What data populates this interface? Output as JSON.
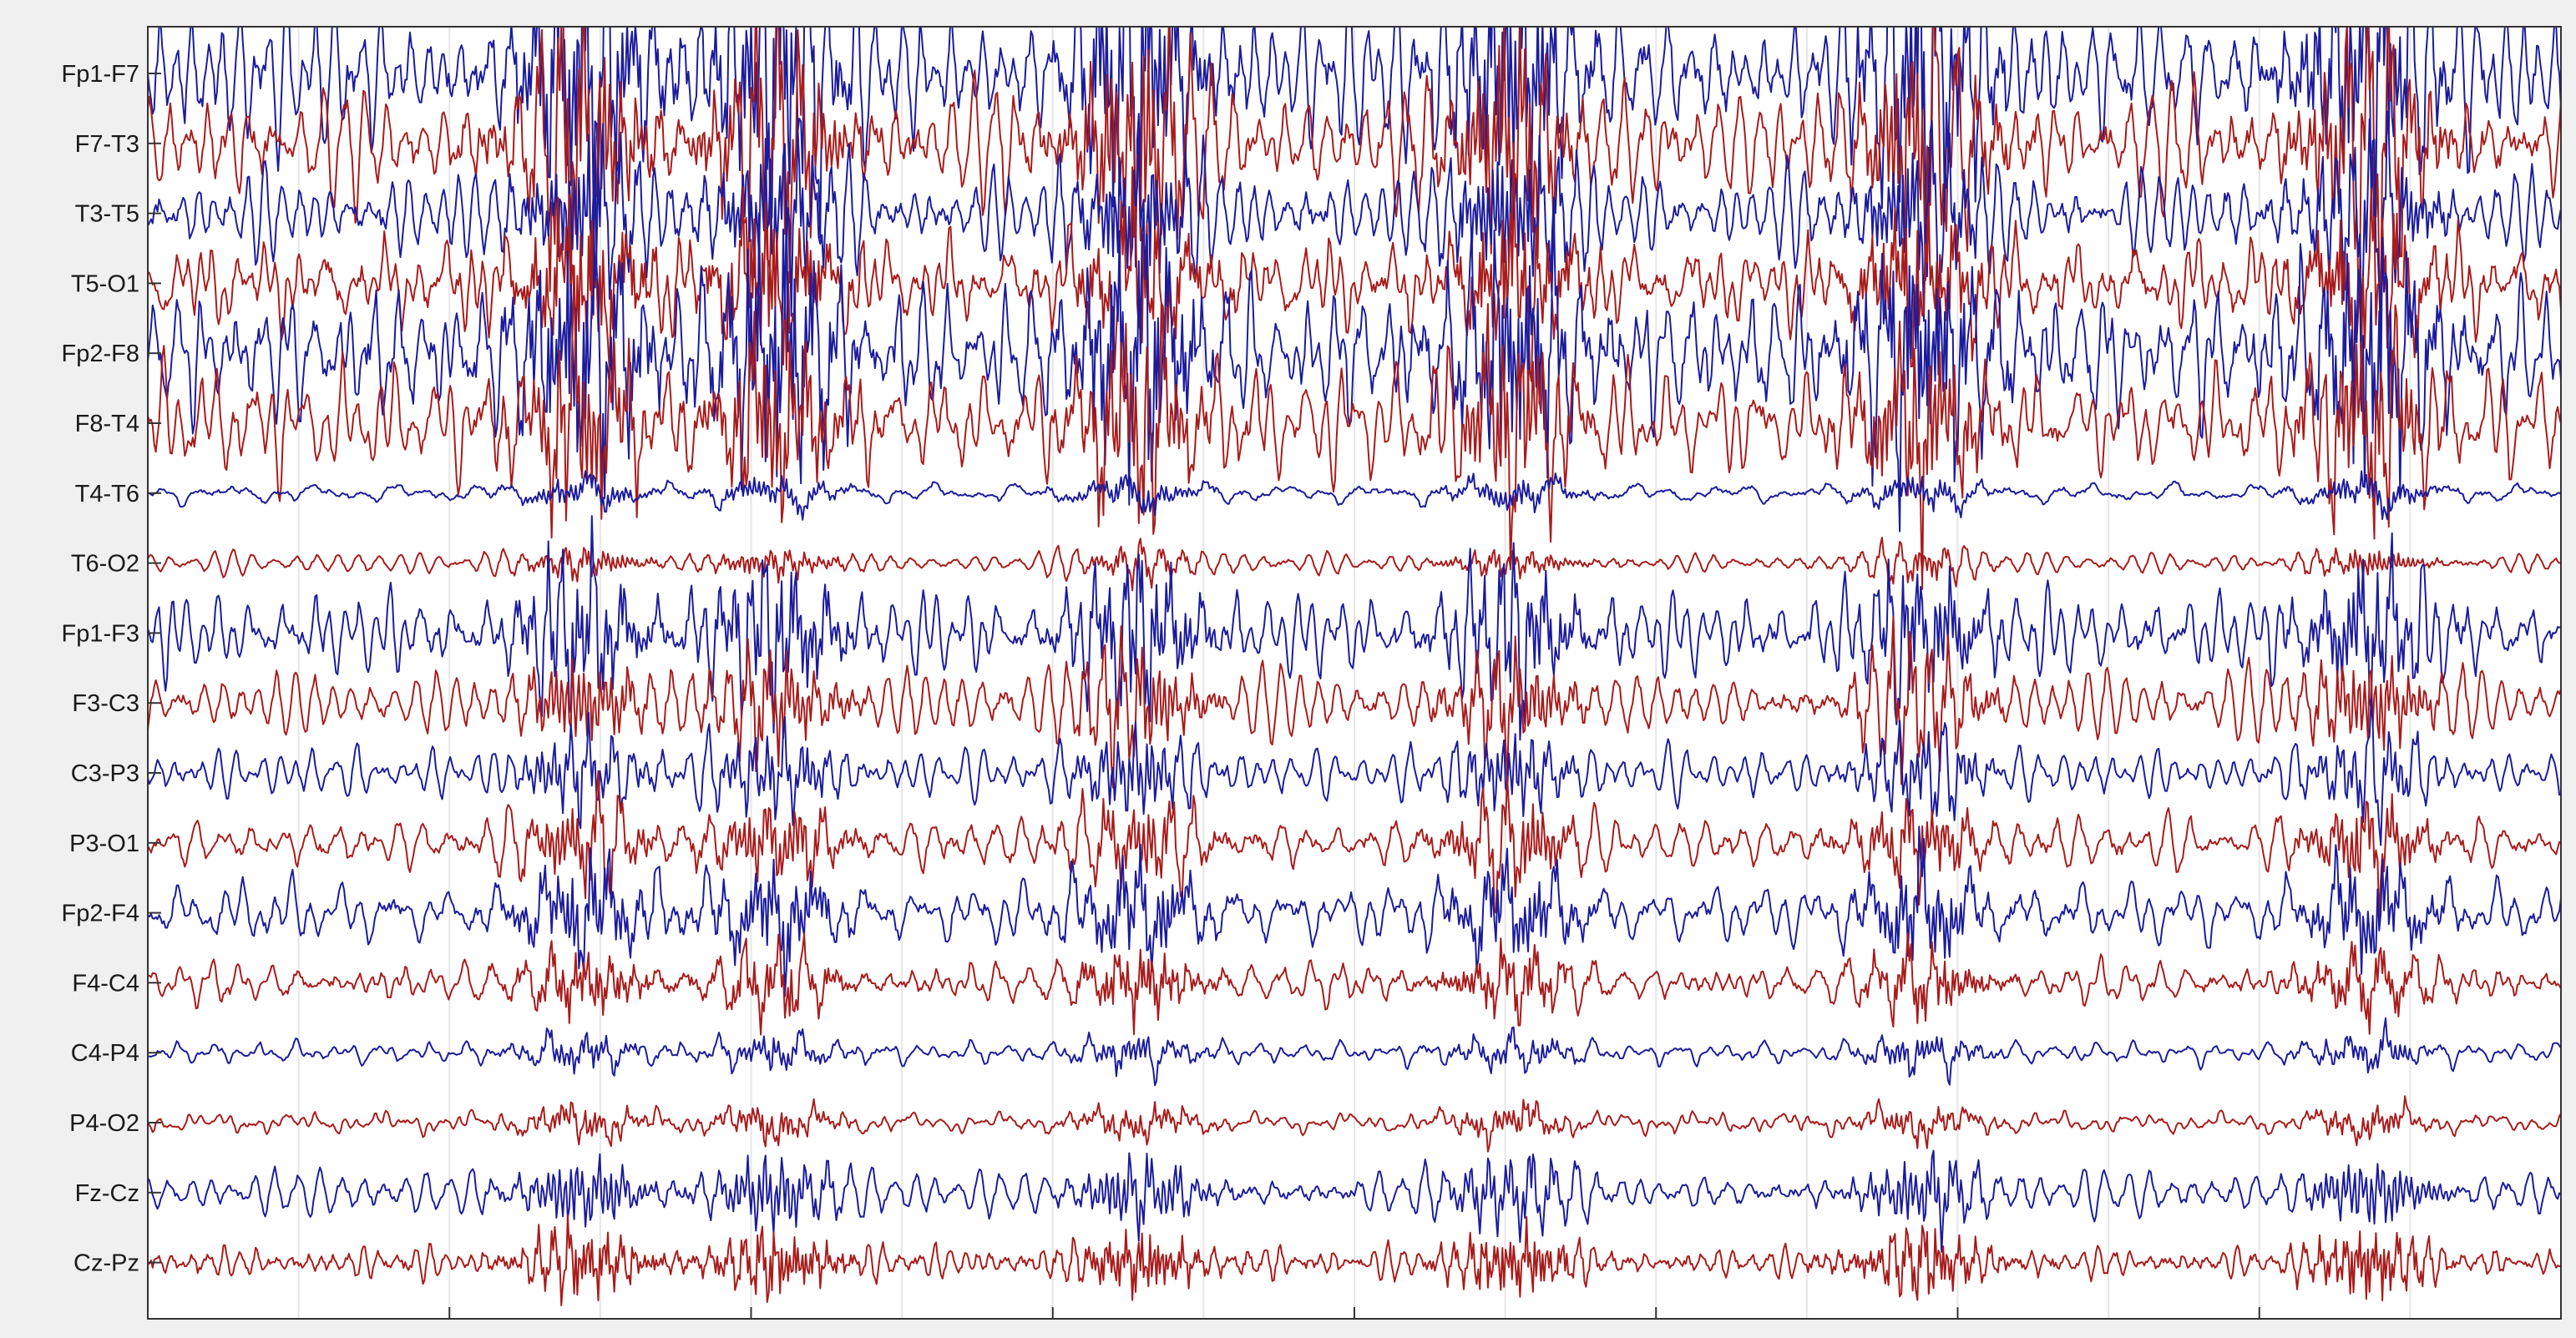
{
  "chart_data": {
    "type": "line",
    "title": "",
    "xlabel": "",
    "ylabel": "",
    "grid": "vertical",
    "x_ticks": 9,
    "colors": {
      "odd": "#1c1c9c",
      "even": "#a81c1c",
      "grid": "#e6e6e6",
      "axes": "#333333",
      "background": "#ffffff"
    },
    "channels": [
      {
        "name": "Fp1-F7",
        "color": "#1c1c9c",
        "amplitude": 2.6
      },
      {
        "name": "F7-T3",
        "color": "#a81c1c",
        "amplitude": 2.4
      },
      {
        "name": "T3-T5",
        "color": "#1c1c9c",
        "amplitude": 1.6
      },
      {
        "name": "T5-O1",
        "color": "#a81c1c",
        "amplitude": 1.5
      },
      {
        "name": "Fp2-F8",
        "color": "#1c1c9c",
        "amplitude": 2.4
      },
      {
        "name": "F8-T4",
        "color": "#a81c1c",
        "amplitude": 1.9
      },
      {
        "name": "T4-T6",
        "color": "#1c1c9c",
        "amplitude": 0.35
      },
      {
        "name": "T6-O2",
        "color": "#a81c1c",
        "amplitude": 0.35
      },
      {
        "name": "Fp1-F3",
        "color": "#1c1c9c",
        "amplitude": 1.4
      },
      {
        "name": "F3-C3",
        "color": "#a81c1c",
        "amplitude": 1.2
      },
      {
        "name": "C3-P3",
        "color": "#1c1c9c",
        "amplitude": 0.9
      },
      {
        "name": "P3-O1",
        "color": "#a81c1c",
        "amplitude": 1.0
      },
      {
        "name": "Fp2-F4",
        "color": "#1c1c9c",
        "amplitude": 1.1
      },
      {
        "name": "F4-C4",
        "color": "#a81c1c",
        "amplitude": 0.7
      },
      {
        "name": "C4-P4",
        "color": "#1c1c9c",
        "amplitude": 0.35
      },
      {
        "name": "P4-O2",
        "color": "#a81c1c",
        "amplitude": 0.35
      },
      {
        "name": "Fz-Cz",
        "color": "#1c1c9c",
        "amplitude": 0.9
      },
      {
        "name": "Cz-Pz",
        "color": "#a81c1c",
        "amplitude": 0.85
      }
    ]
  }
}
